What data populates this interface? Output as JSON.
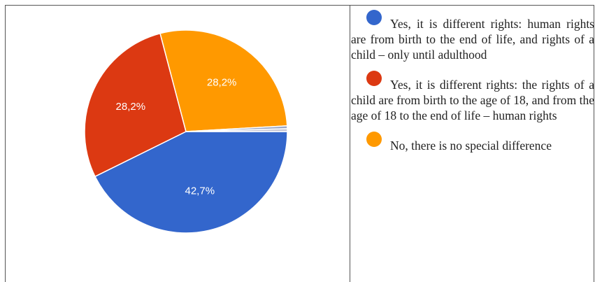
{
  "chart_data": {
    "type": "pie",
    "title": "",
    "slices": [
      {
        "label": "Yes, it is different rights: human rights are from birth to the end of life, and rights of a child – only until adulthood",
        "value": 42.7,
        "display": "42,7%",
        "color": "#3366cc"
      },
      {
        "label": "Yes, it is different rights: the rights of a child are from birth to the age of 18, and from the age of 18 to the end of life – human rights",
        "value": 28.2,
        "display": "28,2%",
        "color": "#dc3912"
      },
      {
        "label": "No, there is no special difference",
        "value": 28.2,
        "display": "28,2%",
        "color": "#ff9900"
      },
      {
        "label": "",
        "value": 0.45,
        "display": "",
        "color": "#9aa7c7"
      },
      {
        "label": "",
        "value": 0.45,
        "display": "",
        "color": "#c7c7d6"
      }
    ],
    "legend_placement": "right"
  }
}
